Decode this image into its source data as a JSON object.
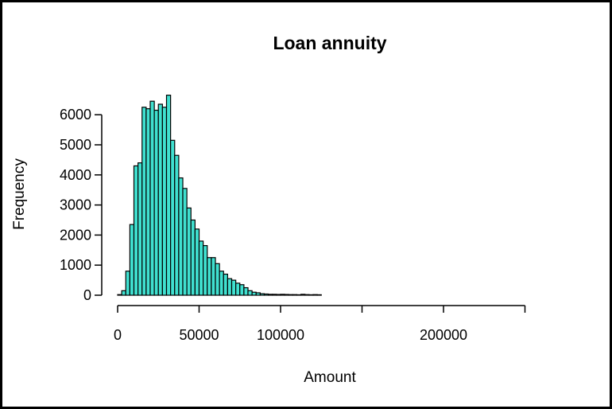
{
  "chart_data": {
    "type": "bar",
    "title": "Loan annuity",
    "xlabel": "Amount",
    "ylabel": "Frequency",
    "bar_color": "#40E0D0",
    "edge_color": "#000000",
    "bin_width": 2500,
    "bins_start": 0,
    "values": [
      20,
      150,
      800,
      2350,
      4300,
      4400,
      6250,
      6200,
      6450,
      6150,
      6350,
      6250,
      6650,
      5150,
      4650,
      3900,
      3550,
      2900,
      2500,
      2200,
      1800,
      1650,
      1250,
      1250,
      1050,
      800,
      700,
      550,
      500,
      400,
      350,
      250,
      150,
      100,
      80,
      50,
      40,
      30,
      30,
      25,
      30,
      25,
      20,
      20,
      15,
      30,
      20,
      15,
      20,
      15
    ],
    "xticks": [
      0,
      50000,
      100000,
      150000,
      200000,
      250000
    ],
    "xtick_labels": [
      "0",
      "50000",
      "100000",
      "",
      "200000",
      ""
    ],
    "yticks": [
      0,
      1000,
      2000,
      3000,
      4000,
      5000,
      6000
    ],
    "ytick_labels": [
      "0",
      "1000",
      "2000",
      "3000",
      "4000",
      "5000",
      "6000"
    ],
    "xlim": [
      0,
      260000
    ],
    "ylim": [
      0,
      6000
    ],
    "grid": false
  }
}
